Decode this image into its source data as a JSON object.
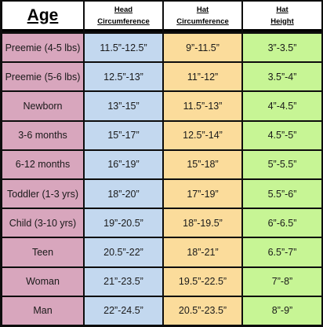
{
  "headers": {
    "age": "Age",
    "head_line1": "Head",
    "head_line2": "Circumference",
    "hatc_line1": "Hat",
    "hatc_line2": "Circumference",
    "hath_line1": "Hat",
    "hath_line2": "Height"
  },
  "rows": [
    {
      "age": "Preemie (4-5 lbs)",
      "head": "11.5”-12.5”",
      "hat_circ": "9”-11.5”",
      "hat_height": "3”-3.5”"
    },
    {
      "age": "Preemie (5-6 lbs)",
      "head": "12.5”-13”",
      "hat_circ": "11”-12”",
      "hat_height": "3.5”-4”"
    },
    {
      "age": "Newborn",
      "head": "13”-15”",
      "hat_circ": "11.5”-13”",
      "hat_height": "4”-4.5”"
    },
    {
      "age": "3-6 months",
      "head": "15”-17”",
      "hat_circ": "12.5”-14”",
      "hat_height": "4.5”-5”"
    },
    {
      "age": "6-12 months",
      "head": "16”-19”",
      "hat_circ": "15”-18”",
      "hat_height": "5”-5.5”"
    },
    {
      "age": "Toddler (1-3 yrs)",
      "head": "18”-20”",
      "hat_circ": "17”-19”",
      "hat_height": "5.5”-6”"
    },
    {
      "age": "Child (3-10 yrs)",
      "head": "19”-20.5”",
      "hat_circ": "18”-19.5”",
      "hat_height": "6”-6.5”"
    },
    {
      "age": "Teen",
      "head": "20.5”-22”",
      "hat_circ": "18”-21”",
      "hat_height": "6.5”-7”"
    },
    {
      "age": "Woman",
      "head": "21”-23.5”",
      "hat_circ": "19.5”-22.5”",
      "hat_height": "7”-8”"
    },
    {
      "age": "Man",
      "head": "22”-24.5”",
      "hat_circ": "20.5”-23.5”",
      "hat_height": "8”-9”"
    }
  ],
  "colors": {
    "age": "#d8a6bd",
    "head": "#c3d8ef",
    "hat_circ": "#fbdc9b",
    "hat_height": "#c7f595"
  }
}
